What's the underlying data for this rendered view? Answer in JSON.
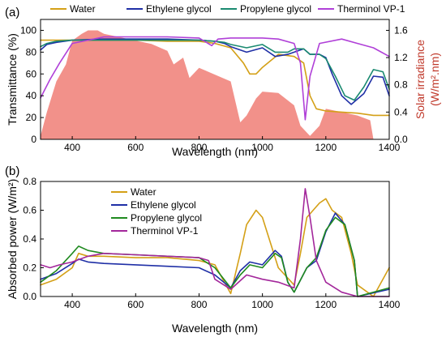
{
  "panels": {
    "a_label": "(a)",
    "b_label": "(b)"
  },
  "chart_data": [
    {
      "type": "line",
      "panel": "(a)",
      "xlabel": "Wavelength (nm)",
      "ylabel": "Transmittance (%)",
      "y2label_line1": "Solar irradiance",
      "y2label_line2": "(W/m².nm)",
      "xlim": [
        300,
        1400
      ],
      "ylim": [
        0,
        110
      ],
      "y2lim": [
        0,
        1.76
      ],
      "x_ticks": [
        400,
        600,
        800,
        1000,
        1200,
        1400
      ],
      "y_ticks": [
        0,
        20,
        40,
        60,
        80,
        100
      ],
      "y2_ticks": [
        "0.0",
        "0.4",
        "0.8",
        "1.2",
        "1.6"
      ],
      "legend_position": "top",
      "legend_entries": [
        "Water",
        "Ethylene glycol",
        "Propylene glycol",
        "Therminol VP-1"
      ],
      "colors": {
        "water": "#d4a017",
        "ethylene": "#1f2fa6",
        "propylene": "#1a8a70",
        "therminol": "#b040d8",
        "solar": "#f2918a",
        "right_axis": "#c0392b"
      },
      "series": [
        {
          "name": "Water",
          "x": [
            300,
            350,
            400,
            500,
            600,
            700,
            800,
            850,
            900,
            940,
            960,
            980,
            1000,
            1050,
            1100,
            1130,
            1150,
            1170,
            1200,
            1250,
            1300,
            1350,
            1400
          ],
          "values": [
            91,
            91,
            91,
            91,
            91,
            90,
            90,
            88,
            84,
            70,
            60,
            60,
            66,
            78,
            76,
            70,
            40,
            28,
            26,
            25,
            24,
            22,
            22
          ]
        },
        {
          "name": "Ethylene glycol",
          "x": [
            300,
            320,
            350,
            400,
            500,
            600,
            700,
            800,
            850,
            880,
            900,
            950,
            1000,
            1040,
            1080,
            1100,
            1130,
            1150,
            1180,
            1200,
            1220,
            1250,
            1280,
            1320,
            1350,
            1380,
            1400
          ],
          "values": [
            82,
            87,
            89,
            91,
            92,
            92,
            92,
            91,
            90,
            88,
            85,
            80,
            84,
            76,
            78,
            80,
            83,
            78,
            78,
            75,
            60,
            40,
            32,
            42,
            58,
            57,
            40
          ]
        },
        {
          "name": "Propylene glycol",
          "x": [
            300,
            320,
            350,
            400,
            500,
            600,
            700,
            800,
            850,
            880,
            900,
            950,
            1000,
            1040,
            1080,
            1100,
            1130,
            1150,
            1180,
            1200,
            1230,
            1260,
            1290,
            1320,
            1350,
            1380,
            1400
          ],
          "values": [
            85,
            88,
            90,
            91,
            91,
            91,
            91,
            91,
            90,
            89,
            87,
            84,
            87,
            80,
            80,
            83,
            83,
            78,
            78,
            74,
            58,
            40,
            36,
            48,
            64,
            62,
            46
          ]
        },
        {
          "name": "Therminol VP-1",
          "x": [
            300,
            330,
            360,
            400,
            500,
            600,
            700,
            800,
            840,
            860,
            900,
            1000,
            1050,
            1100,
            1120,
            1135,
            1150,
            1180,
            1250,
            1300,
            1350,
            1400
          ],
          "values": [
            38,
            55,
            70,
            88,
            94,
            94,
            94,
            93,
            86,
            92,
            93,
            93,
            92,
            88,
            70,
            18,
            58,
            88,
            92,
            88,
            84,
            76
          ]
        },
        {
          "name": "Solar irradiance",
          "x": [
            300,
            320,
            350,
            380,
            400,
            430,
            450,
            480,
            500,
            550,
            600,
            650,
            700,
            720,
            750,
            770,
            800,
            850,
            900,
            930,
            950,
            980,
            1000,
            1050,
            1100,
            1120,
            1150,
            1180,
            1200,
            1250,
            1300,
            1340,
            1350,
            1400
          ],
          "values": [
            0.05,
            0.4,
            0.85,
            1.1,
            1.45,
            1.55,
            1.6,
            1.6,
            1.55,
            1.5,
            1.45,
            1.4,
            1.3,
            1.1,
            1.2,
            0.9,
            1.05,
            0.95,
            0.85,
            0.25,
            0.35,
            0.6,
            0.7,
            0.68,
            0.5,
            0.2,
            0.05,
            0.2,
            0.45,
            0.4,
            0.35,
            0.28,
            0.0,
            0.0
          ]
        }
      ]
    },
    {
      "type": "line",
      "panel": "(b)",
      "xlabel": "Wavelength (nm)",
      "ylabel": "Absorbed power (W/m²)",
      "xlim": [
        300,
        1400
      ],
      "ylim": [
        0,
        0.8
      ],
      "x_ticks": [
        400,
        600,
        800,
        1000,
        1200,
        1400
      ],
      "y_ticks": [
        "0.0",
        "0.2",
        "0.4",
        "0.6",
        "0.8"
      ],
      "legend_position": "top-center",
      "legend_entries": [
        "Water",
        "Ethylene glycol",
        "Propylene glycol",
        "Therminol VP-1"
      ],
      "colors": {
        "water": "#d4a017",
        "ethylene": "#1f2fa6",
        "propylene": "#1f8a1f",
        "therminol": "#a3279b"
      },
      "series": [
        {
          "name": "Water",
          "x": [
            300,
            350,
            400,
            420,
            450,
            500,
            600,
            700,
            800,
            850,
            880,
            900,
            930,
            950,
            980,
            1000,
            1050,
            1100,
            1120,
            1140,
            1160,
            1180,
            1200,
            1220,
            1250,
            1280,
            1300,
            1350,
            1400
          ],
          "values": [
            0.08,
            0.12,
            0.2,
            0.3,
            0.28,
            0.28,
            0.27,
            0.27,
            0.25,
            0.22,
            0.1,
            0.02,
            0.3,
            0.5,
            0.6,
            0.55,
            0.2,
            0.08,
            0.3,
            0.55,
            0.6,
            0.65,
            0.68,
            0.6,
            0.55,
            0.3,
            0.08,
            0.0,
            0.2
          ]
        },
        {
          "name": "Ethylene glycol",
          "x": [
            300,
            350,
            400,
            420,
            450,
            500,
            600,
            700,
            800,
            850,
            900,
            930,
            960,
            1000,
            1040,
            1060,
            1080,
            1100,
            1140,
            1170,
            1200,
            1230,
            1260,
            1290,
            1300,
            1400
          ],
          "values": [
            0.12,
            0.16,
            0.23,
            0.26,
            0.24,
            0.23,
            0.22,
            0.21,
            0.2,
            0.15,
            0.06,
            0.18,
            0.24,
            0.22,
            0.32,
            0.28,
            0.1,
            0.03,
            0.2,
            0.25,
            0.45,
            0.58,
            0.5,
            0.25,
            0.0,
            0.05
          ]
        },
        {
          "name": "Propylene glycol",
          "x": [
            300,
            350,
            400,
            420,
            450,
            500,
            600,
            700,
            800,
            850,
            900,
            930,
            960,
            1000,
            1040,
            1060,
            1080,
            1100,
            1140,
            1170,
            1200,
            1230,
            1260,
            1290,
            1300,
            1400
          ],
          "values": [
            0.1,
            0.18,
            0.3,
            0.35,
            0.32,
            0.3,
            0.29,
            0.28,
            0.27,
            0.2,
            0.06,
            0.15,
            0.22,
            0.2,
            0.3,
            0.27,
            0.1,
            0.03,
            0.2,
            0.27,
            0.46,
            0.55,
            0.5,
            0.25,
            0.0,
            0.06
          ]
        },
        {
          "name": "Therminol VP-1",
          "x": [
            300,
            330,
            360,
            400,
            450,
            500,
            600,
            700,
            800,
            830,
            850,
            900,
            950,
            1000,
            1050,
            1100,
            1120,
            1135,
            1150,
            1170,
            1200,
            1250,
            1300,
            1400
          ],
          "values": [
            0.22,
            0.2,
            0.22,
            0.24,
            0.28,
            0.3,
            0.29,
            0.28,
            0.27,
            0.25,
            0.12,
            0.05,
            0.15,
            0.12,
            0.1,
            0.06,
            0.4,
            0.75,
            0.55,
            0.25,
            0.1,
            0.03,
            0.0,
            0.0
          ]
        }
      ]
    }
  ]
}
